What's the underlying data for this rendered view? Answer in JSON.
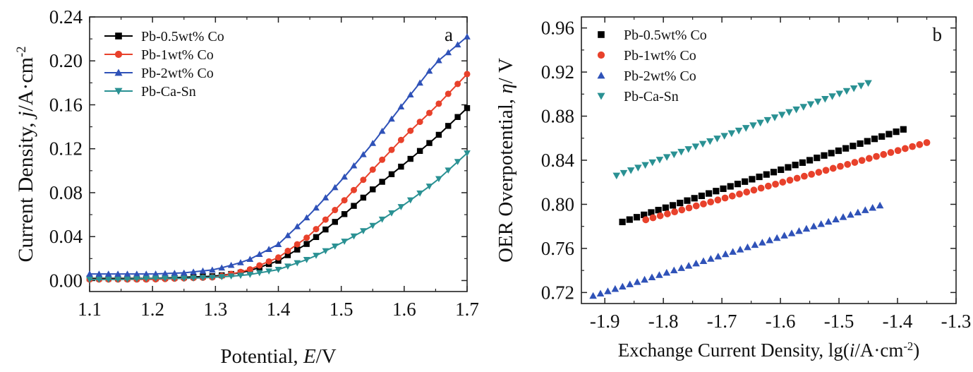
{
  "chart_data": [
    {
      "type": "line",
      "panel_label": "a",
      "xlabel_prefix": "Potential, ",
      "xlabel_var": "E",
      "xlabel_suffix": "/V",
      "ylabel_prefix": "Current Density, ",
      "ylabel_var": "j",
      "ylabel_suffix": "/A·cm",
      "ylabel_sup": "-2",
      "xlim": [
        1.1,
        1.7
      ],
      "ylim": [
        -0.01,
        0.24
      ],
      "xticks": [
        "1.1",
        "1.2",
        "1.3",
        "1.4",
        "1.5",
        "1.6",
        "1.7"
      ],
      "yticks": [
        "0.00",
        "0.04",
        "0.08",
        "0.12",
        "0.16",
        "0.20",
        "0.24"
      ],
      "legend_position": "top-left",
      "series": [
        {
          "name": "Pb-0.5wt% Co",
          "color": "#000000",
          "marker": "square",
          "x": [
            1.1,
            1.15,
            1.2,
            1.25,
            1.3,
            1.35,
            1.4,
            1.45,
            1.5,
            1.55,
            1.6,
            1.65,
            1.7
          ],
          "y": [
            0.002,
            0.002,
            0.002,
            0.003,
            0.004,
            0.008,
            0.018,
            0.035,
            0.058,
            0.083,
            0.106,
            0.13,
            0.157
          ]
        },
        {
          "name": "Pb-1wt% Co",
          "color": "#e8412b",
          "marker": "circle",
          "x": [
            1.1,
            1.15,
            1.2,
            1.25,
            1.3,
            1.35,
            1.4,
            1.45,
            1.5,
            1.55,
            1.6,
            1.65,
            1.7
          ],
          "y": [
            0.001,
            0.001,
            0.001,
            0.002,
            0.003,
            0.009,
            0.021,
            0.041,
            0.07,
            0.101,
            0.131,
            0.158,
            0.188
          ]
        },
        {
          "name": "Pb-2wt% Co",
          "color": "#2f52b8",
          "marker": "triangle-up",
          "x": [
            1.1,
            1.15,
            1.2,
            1.25,
            1.3,
            1.35,
            1.4,
            1.45,
            1.5,
            1.55,
            1.6,
            1.65,
            1.7
          ],
          "y": [
            0.006,
            0.006,
            0.006,
            0.007,
            0.01,
            0.018,
            0.033,
            0.06,
            0.091,
            0.125,
            0.162,
            0.198,
            0.222
          ]
        },
        {
          "name": "Pb-Ca-Sn",
          "color": "#2a9193",
          "marker": "triangle-down",
          "x": [
            1.1,
            1.15,
            1.2,
            1.25,
            1.3,
            1.35,
            1.4,
            1.45,
            1.5,
            1.55,
            1.6,
            1.65,
            1.7
          ],
          "y": [
            0.001,
            0.001,
            0.002,
            0.002,
            0.003,
            0.005,
            0.01,
            0.02,
            0.034,
            0.05,
            0.069,
            0.09,
            0.116
          ]
        }
      ]
    },
    {
      "type": "scatter",
      "panel_label": "b",
      "xlabel_prefix": "Exchange Current Density, lg(",
      "xlabel_var": "i",
      "xlabel_suffix": "/A·cm",
      "xlabel_sup": "-2",
      "xlabel_close": ")",
      "ylabel_prefix": "OER Overpotential, ",
      "ylabel_var": "η",
      "ylabel_suffix": "/ V",
      "xlim": [
        -1.94,
        -1.3
      ],
      "ylim": [
        0.71,
        0.97
      ],
      "xticks": [
        "-1.9",
        "-1.8",
        "-1.7",
        "-1.6",
        "-1.5",
        "-1.4",
        "-1.3"
      ],
      "yticks": [
        "0.72",
        "0.76",
        "0.80",
        "0.84",
        "0.88",
        "0.92",
        "0.96"
      ],
      "legend_position": "top-left",
      "series": [
        {
          "name": "Pb-0.5wt% Co",
          "color": "#000000",
          "marker": "square",
          "x": [
            -1.87,
            -1.39
          ],
          "y": [
            0.784,
            0.868
          ],
          "points": 40
        },
        {
          "name": "Pb-1wt% Co",
          "color": "#e8412b",
          "marker": "circle",
          "x": [
            -1.83,
            -1.35
          ],
          "y": [
            0.786,
            0.856
          ],
          "points": 40
        },
        {
          "name": "Pb-2wt% Co",
          "color": "#2f52b8",
          "marker": "triangle-up",
          "x": [
            -1.92,
            -1.43
          ],
          "y": [
            0.717,
            0.799
          ],
          "points": 40
        },
        {
          "name": "Pb-Ca-Sn",
          "color": "#2a9193",
          "marker": "triangle-down",
          "x": [
            -1.88,
            -1.45
          ],
          "y": [
            0.826,
            0.91
          ],
          "points": 36
        }
      ]
    }
  ]
}
